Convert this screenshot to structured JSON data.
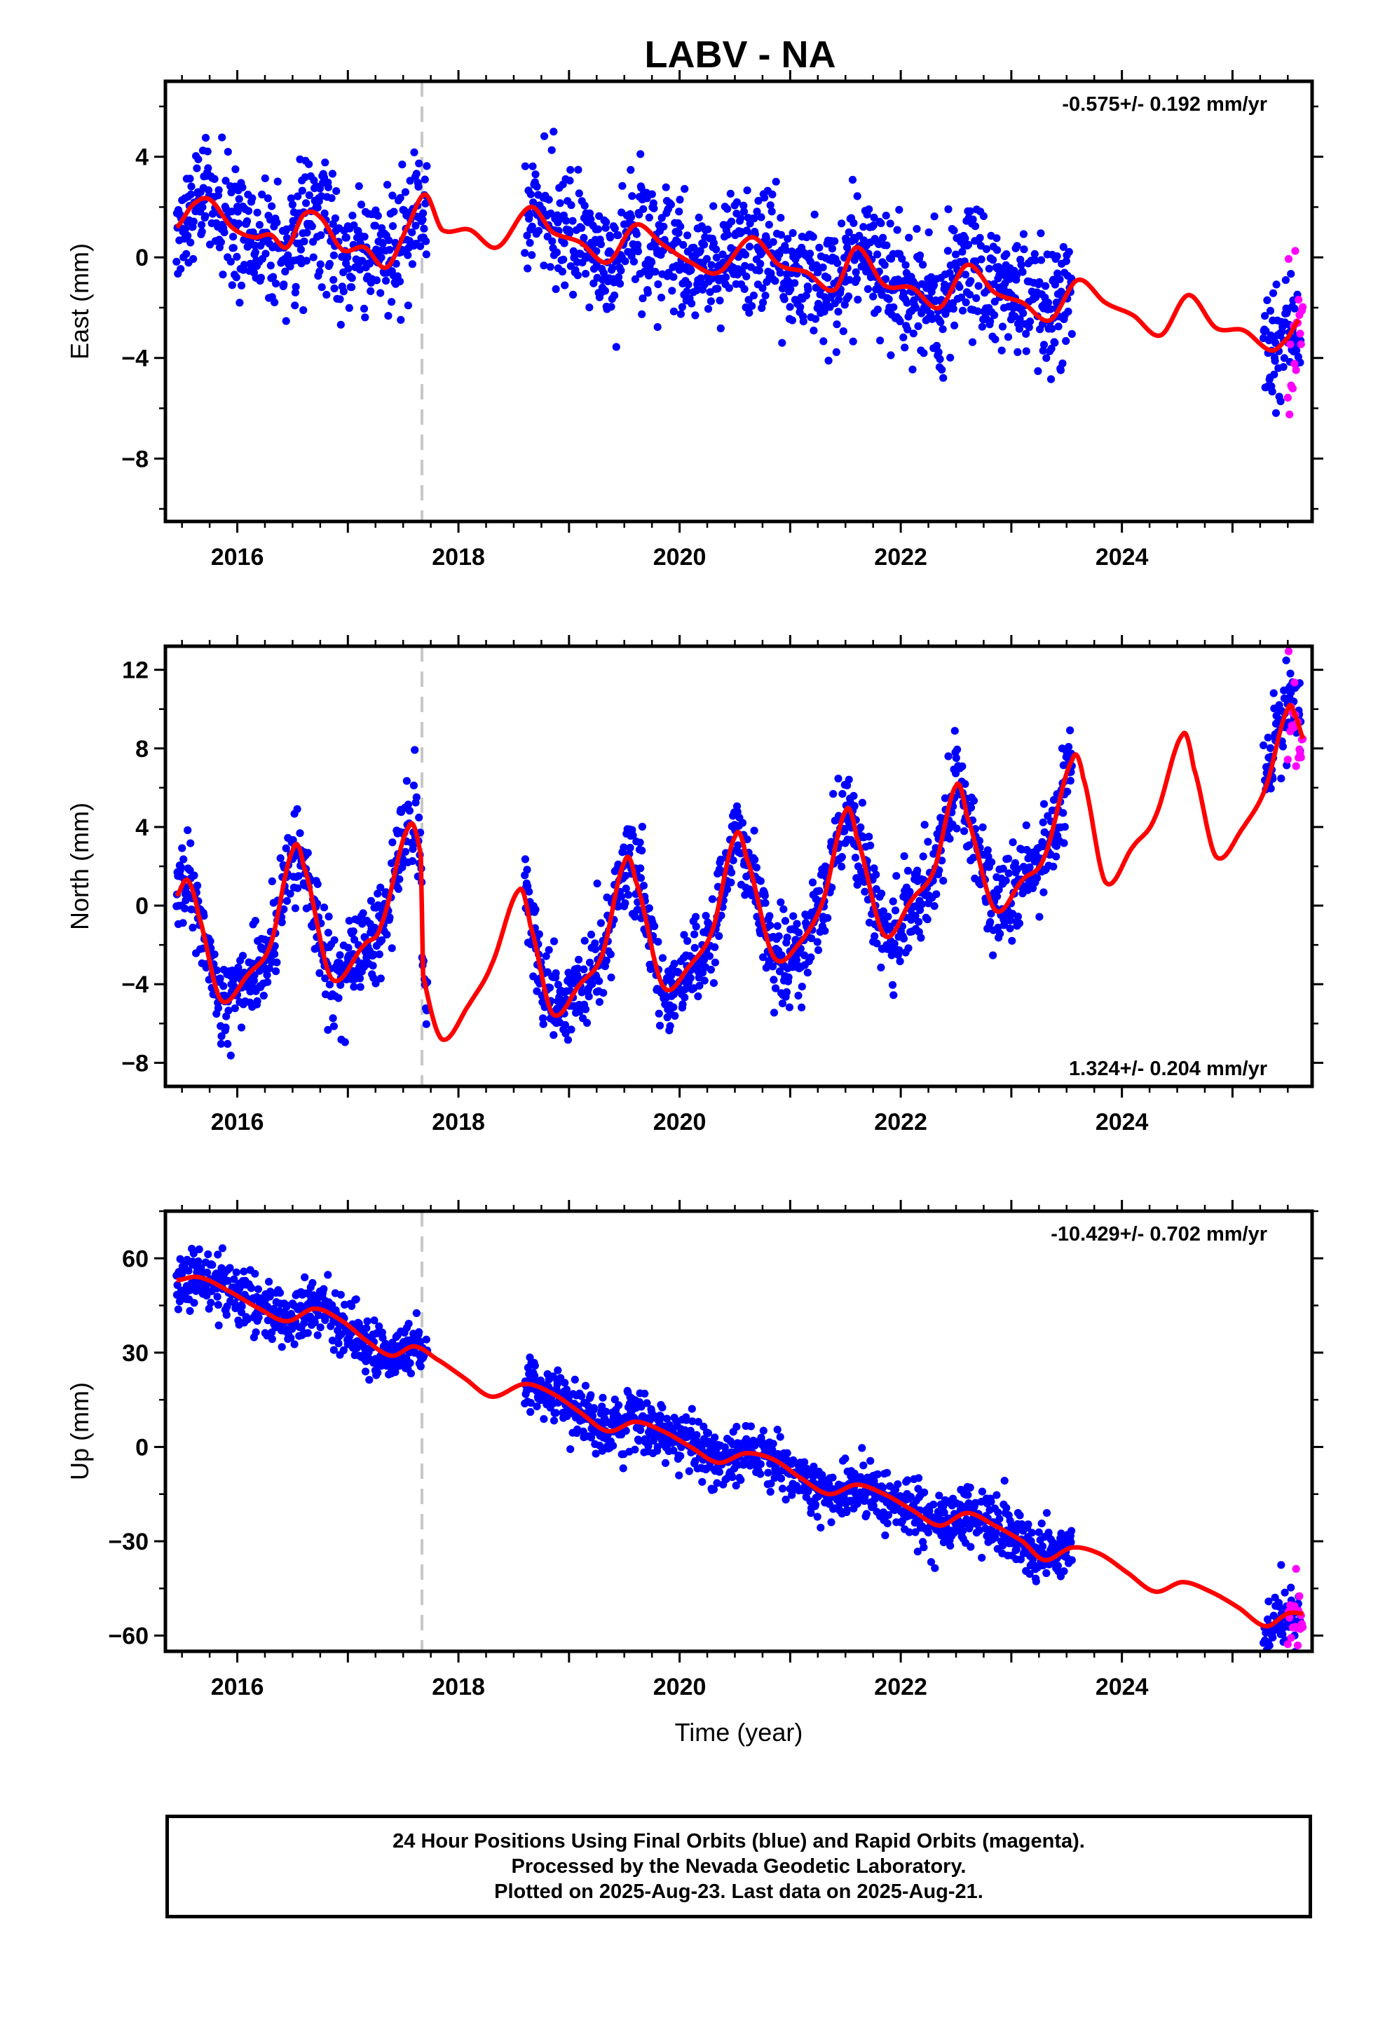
{
  "title": "LABV - NA",
  "footer": {
    "line1": "24 Hour Positions Using Final Orbits (blue) and Rapid Orbits (magenta).",
    "line2": "Processed by the Nevada Geodetic Laboratory.",
    "line3": "Plotted on 2025-Aug-23. Last data on 2025-Aug-21."
  },
  "colors": {
    "final_orbits": "#0000ff",
    "rapid_orbits": "#ff00ff",
    "model": "#ff0000",
    "equipment_change": "#c8c8c8"
  },
  "chart_data": [
    {
      "type": "scatter",
      "component": "east",
      "ylabel": "East (mm)",
      "rate_text": "-0.575+/- 0.192 mm/yr",
      "rate_position": "top-right",
      "xlim": [
        2015.35,
        2025.72
      ],
      "ylim": [
        -10.5,
        7.0
      ],
      "xticks": [
        2016,
        2018,
        2020,
        2022,
        2024
      ],
      "yticks": [
        -8,
        -4,
        0,
        4
      ],
      "ytick_labels": [
        "−8",
        "−4",
        "0",
        "4"
      ],
      "grid": false,
      "equipment_change_x": 2017.67,
      "data_spans": [
        [
          2015.45,
          2017.72
        ],
        [
          2018.6,
          2023.55
        ],
        [
          2025.28,
          2025.62
        ]
      ],
      "rapid_span": [
        2025.5,
        2025.64
      ],
      "model_knots": [
        [
          2015.45,
          1.2
        ],
        [
          2015.6,
          2.1
        ],
        [
          2015.75,
          2.3
        ],
        [
          2015.95,
          1.2
        ],
        [
          2016.15,
          0.8
        ],
        [
          2016.3,
          0.9
        ],
        [
          2016.45,
          0.4
        ],
        [
          2016.6,
          1.7
        ],
        [
          2016.75,
          1.6
        ],
        [
          2016.95,
          0.3
        ],
        [
          2017.15,
          0.4
        ],
        [
          2017.35,
          -0.4
        ],
        [
          2017.55,
          1.3
        ],
        [
          2017.7,
          2.5
        ],
        [
          2017.85,
          1.1
        ],
        [
          2018.1,
          1.1
        ],
        [
          2018.35,
          0.4
        ],
        [
          2018.65,
          2.0
        ],
        [
          2018.85,
          1.0
        ],
        [
          2019.1,
          0.6
        ],
        [
          2019.35,
          -0.2
        ],
        [
          2019.6,
          1.3
        ],
        [
          2019.85,
          0.5
        ],
        [
          2020.1,
          -0.2
        ],
        [
          2020.35,
          -0.6
        ],
        [
          2020.65,
          0.8
        ],
        [
          2020.9,
          -0.3
        ],
        [
          2021.15,
          -0.6
        ],
        [
          2021.4,
          -1.3
        ],
        [
          2021.6,
          0.4
        ],
        [
          2021.85,
          -1.1
        ],
        [
          2022.1,
          -1.2
        ],
        [
          2022.35,
          -2.0
        ],
        [
          2022.6,
          -0.3
        ],
        [
          2022.85,
          -1.4
        ],
        [
          2023.1,
          -1.8
        ],
        [
          2023.35,
          -2.5
        ],
        [
          2023.6,
          -0.9
        ],
        [
          2023.85,
          -1.8
        ],
        [
          2024.1,
          -2.3
        ],
        [
          2024.35,
          -3.1
        ],
        [
          2024.6,
          -1.5
        ],
        [
          2024.85,
          -2.8
        ],
        [
          2025.1,
          -2.9
        ],
        [
          2025.35,
          -3.7
        ],
        [
          2025.5,
          -3.2
        ],
        [
          2025.6,
          -2.5
        ]
      ]
    },
    {
      "type": "scatter",
      "component": "north",
      "ylabel": "North (mm)",
      "rate_text": "1.324+/- 0.204 mm/yr",
      "rate_position": "bottom-right",
      "xlim": [
        2015.35,
        2025.72
      ],
      "ylim": [
        -9.2,
        13.2
      ],
      "xticks": [
        2016,
        2018,
        2020,
        2022,
        2024
      ],
      "yticks": [
        -8,
        -4,
        0,
        4,
        8,
        12
      ],
      "ytick_labels": [
        "−8",
        "−4",
        "0",
        "4",
        "8",
        "12"
      ],
      "grid": false,
      "equipment_change_x": 2017.67,
      "data_spans": [
        [
          2015.45,
          2017.72
        ],
        [
          2018.6,
          2023.55
        ],
        [
          2025.28,
          2025.62
        ]
      ],
      "rapid_span": [
        2025.5,
        2025.64
      ],
      "model_knots": [
        [
          2015.45,
          0.5
        ],
        [
          2015.55,
          1.3
        ],
        [
          2015.65,
          -0.5
        ],
        [
          2015.85,
          -4.8
        ],
        [
          2016.1,
          -3.5
        ],
        [
          2016.3,
          -2.0
        ],
        [
          2016.5,
          2.8
        ],
        [
          2016.6,
          2.0
        ],
        [
          2016.85,
          -3.7
        ],
        [
          2017.15,
          -2.0
        ],
        [
          2017.3,
          -1.0
        ],
        [
          2017.55,
          4.0
        ],
        [
          2017.66,
          2.5
        ],
        [
          2017.68,
          -3.5
        ],
        [
          2017.85,
          -6.8
        ],
        [
          2018.1,
          -5.0
        ],
        [
          2018.3,
          -3.0
        ],
        [
          2018.55,
          0.8
        ],
        [
          2018.65,
          -1.0
        ],
        [
          2018.85,
          -5.5
        ],
        [
          2019.1,
          -4.0
        ],
        [
          2019.3,
          -2.5
        ],
        [
          2019.5,
          2.2
        ],
        [
          2019.6,
          1.3
        ],
        [
          2019.85,
          -4.1
        ],
        [
          2020.1,
          -3.0
        ],
        [
          2020.3,
          -1.2
        ],
        [
          2020.5,
          3.5
        ],
        [
          2020.6,
          2.5
        ],
        [
          2020.85,
          -2.6
        ],
        [
          2021.1,
          -1.8
        ],
        [
          2021.3,
          0.3
        ],
        [
          2021.5,
          4.8
        ],
        [
          2021.6,
          3.5
        ],
        [
          2021.85,
          -1.5
        ],
        [
          2022.1,
          0.3
        ],
        [
          2022.3,
          1.8
        ],
        [
          2022.5,
          6.1
        ],
        [
          2022.6,
          4.5
        ],
        [
          2022.85,
          -0.2
        ],
        [
          2023.1,
          1.3
        ],
        [
          2023.3,
          2.5
        ],
        [
          2023.55,
          7.4
        ],
        [
          2023.65,
          6.5
        ],
        [
          2023.85,
          1.2
        ],
        [
          2024.1,
          3.0
        ],
        [
          2024.3,
          4.5
        ],
        [
          2024.55,
          8.7
        ],
        [
          2024.65,
          7.0
        ],
        [
          2024.85,
          2.5
        ],
        [
          2025.1,
          4.0
        ],
        [
          2025.3,
          6.0
        ],
        [
          2025.5,
          10.0
        ],
        [
          2025.58,
          9.5
        ],
        [
          2025.64,
          8.5
        ]
      ]
    },
    {
      "type": "scatter",
      "component": "up",
      "ylabel": "Up (mm)",
      "rate_text": "-10.429+/- 0.702 mm/yr",
      "rate_position": "top-right",
      "xlim": [
        2015.35,
        2025.72
      ],
      "ylim": [
        -65,
        75
      ],
      "xticks": [
        2016,
        2018,
        2020,
        2022,
        2024
      ],
      "xlabel": "Time (year)",
      "yticks": [
        -60,
        -30,
        0,
        30,
        60
      ],
      "ytick_labels": [
        "−60",
        "−30",
        "0",
        "30",
        "60"
      ],
      "grid": false,
      "equipment_change_x": 2017.67,
      "data_spans": [
        [
          2015.45,
          2017.72
        ],
        [
          2018.6,
          2023.55
        ],
        [
          2025.28,
          2025.62
        ]
      ],
      "rapid_span": [
        2025.5,
        2025.64
      ],
      "model_knots": [
        [
          2015.45,
          53
        ],
        [
          2015.65,
          54
        ],
        [
          2015.9,
          50
        ],
        [
          2016.2,
          44
        ],
        [
          2016.45,
          40
        ],
        [
          2016.7,
          44
        ],
        [
          2016.95,
          40
        ],
        [
          2017.2,
          33
        ],
        [
          2017.4,
          29
        ],
        [
          2017.6,
          32
        ],
        [
          2017.8,
          28
        ],
        [
          2018.05,
          22
        ],
        [
          2018.3,
          16
        ],
        [
          2018.6,
          20
        ],
        [
          2018.85,
          17
        ],
        [
          2019.1,
          11
        ],
        [
          2019.35,
          5
        ],
        [
          2019.6,
          8
        ],
        [
          2019.85,
          5
        ],
        [
          2020.1,
          0
        ],
        [
          2020.35,
          -5
        ],
        [
          2020.6,
          -2
        ],
        [
          2020.85,
          -4
        ],
        [
          2021.1,
          -10
        ],
        [
          2021.35,
          -15
        ],
        [
          2021.6,
          -12
        ],
        [
          2021.85,
          -15
        ],
        [
          2022.1,
          -20
        ],
        [
          2022.35,
          -25
        ],
        [
          2022.6,
          -21
        ],
        [
          2022.85,
          -25
        ],
        [
          2023.1,
          -30
        ],
        [
          2023.3,
          -36
        ],
        [
          2023.55,
          -32
        ],
        [
          2023.8,
          -34
        ],
        [
          2024.05,
          -40
        ],
        [
          2024.3,
          -46
        ],
        [
          2024.55,
          -43
        ],
        [
          2024.8,
          -46
        ],
        [
          2025.05,
          -51
        ],
        [
          2025.3,
          -57
        ],
        [
          2025.5,
          -53
        ],
        [
          2025.64,
          -53
        ]
      ]
    }
  ]
}
